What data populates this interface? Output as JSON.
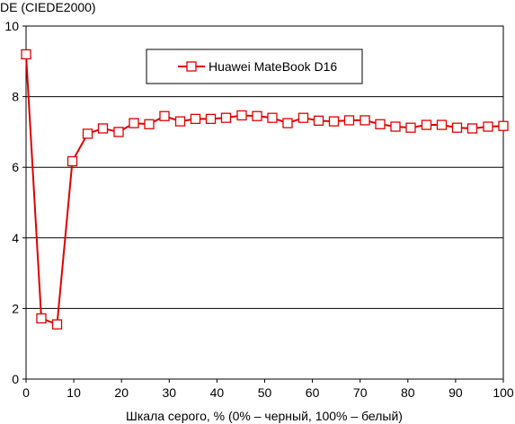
{
  "chart_data": {
    "type": "line",
    "title": "",
    "ylabel": "DE (CIEDE2000)",
    "xlabel": "Шкала серого, % (0% – черный, 100% – белый)",
    "xlim": [
      0,
      100
    ],
    "ylim": [
      0,
      10
    ],
    "x_ticks": [
      0,
      10,
      20,
      30,
      40,
      50,
      60,
      70,
      80,
      90,
      100
    ],
    "y_ticks": [
      0,
      2,
      4,
      6,
      8,
      10
    ],
    "grid": "horizontal",
    "legend_position": "top-center",
    "series": [
      {
        "name": "Huawei MateBook D16",
        "color": "#e00000",
        "marker": "open-square",
        "x": [
          0,
          3.2,
          6.5,
          9.7,
          12.9,
          16.1,
          19.4,
          22.6,
          25.8,
          29.0,
          32.3,
          35.5,
          38.7,
          41.9,
          45.2,
          48.4,
          51.6,
          54.8,
          58.1,
          61.3,
          64.5,
          67.7,
          71.0,
          74.2,
          77.4,
          80.6,
          83.9,
          87.1,
          90.3,
          93.5,
          96.8,
          100
        ],
        "y": [
          9.2,
          1.72,
          1.55,
          6.17,
          6.95,
          7.1,
          7.0,
          7.25,
          7.22,
          7.45,
          7.3,
          7.37,
          7.37,
          7.4,
          7.47,
          7.45,
          7.4,
          7.25,
          7.4,
          7.32,
          7.3,
          7.33,
          7.33,
          7.22,
          7.15,
          7.12,
          7.2,
          7.2,
          7.12,
          7.1,
          7.15,
          7.17
        ]
      }
    ]
  }
}
